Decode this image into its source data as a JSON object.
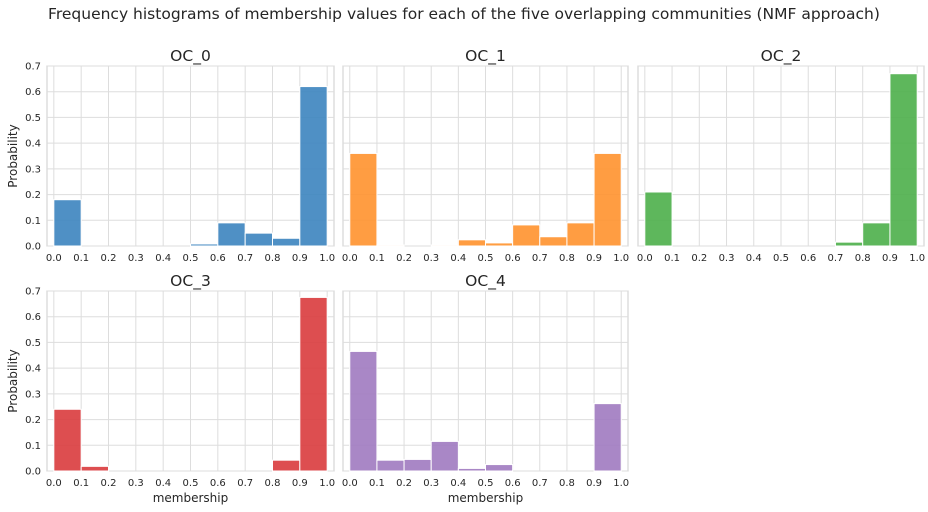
{
  "figure": {
    "title": "Frequency histograms of membership values for each of the five overlapping communities (NMF approach)"
  },
  "chart_data": {
    "type": "bar",
    "layout": "grid of 2 rows x 3 columns, shared axes",
    "grid": true,
    "shared_y_axis": true,
    "ylim": [
      0,
      0.7
    ],
    "xlim": [
      -0.025,
      1.025
    ],
    "bin_edges": [
      0.0,
      0.1,
      0.2,
      0.3,
      0.4,
      0.5,
      0.6,
      0.7,
      0.8,
      0.9,
      1.0
    ],
    "xticks": [
      "0.0",
      "0.1",
      "0.2",
      "0.3",
      "0.4",
      "0.5",
      "0.6",
      "0.7",
      "0.8",
      "0.9",
      "1.0"
    ],
    "yticks": [
      "0.0",
      "0.1",
      "0.2",
      "0.3",
      "0.4",
      "0.5",
      "0.6",
      "0.7"
    ],
    "xlabel": "membership",
    "ylabel": "Probability",
    "panels": [
      {
        "title": "OC_0",
        "color": "#3c84bf",
        "values": [
          0.18,
          0,
          0,
          0,
          0,
          0.008,
          0.09,
          0.05,
          0.03,
          0.62
        ]
      },
      {
        "title": "OC_1",
        "color": "#ff922e",
        "values": [
          0.36,
          0.004,
          0,
          0.004,
          0.024,
          0.012,
          0.082,
          0.036,
          0.09,
          0.36
        ]
      },
      {
        "title": "OC_2",
        "color": "#4daf4a",
        "values": [
          0.21,
          0,
          0,
          0,
          0,
          0,
          0,
          0.015,
          0.09,
          0.67
        ]
      },
      {
        "title": "OC_3",
        "color": "#d93b3d",
        "values": [
          0.24,
          0.018,
          0,
          0,
          0,
          0,
          0,
          0,
          0.042,
          0.675
        ]
      },
      {
        "title": "OC_4",
        "color": "#a07ac0",
        "values": [
          0.465,
          0.042,
          0.045,
          0.115,
          0.01,
          0.025,
          0,
          0,
          0,
          0.262
        ]
      }
    ]
  }
}
